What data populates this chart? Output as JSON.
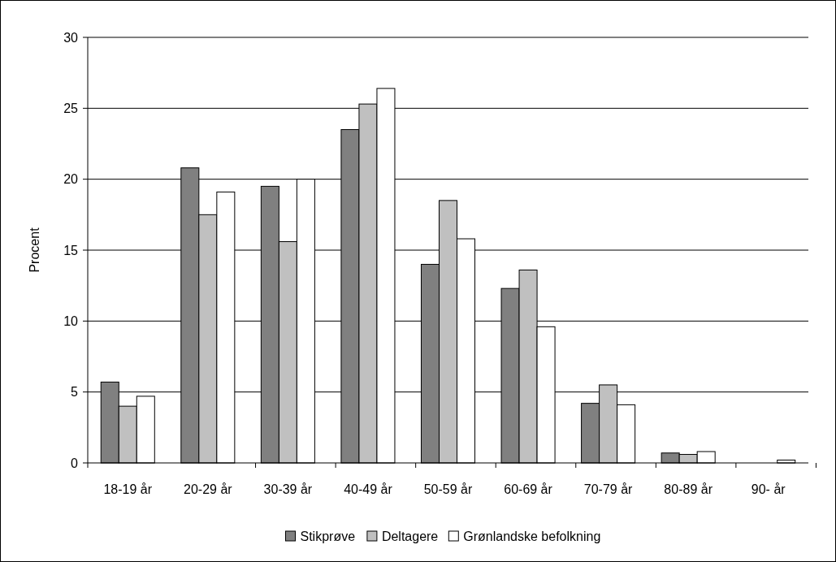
{
  "chart_data": {
    "type": "bar",
    "ylabel": "Procent",
    "categories": [
      "18-19 år",
      "20-29 år",
      "30-39 år",
      "40-49 år",
      "50-59 år",
      "60-69 år",
      "70-79 år",
      "80-89 år",
      "90- år"
    ],
    "series": [
      {
        "name": "Stikprøve",
        "color": "#808080",
        "values": [
          5.7,
          20.8,
          19.5,
          23.5,
          14.0,
          12.3,
          4.2,
          0.7,
          null
        ]
      },
      {
        "name": "Deltagere",
        "color": "#c0c0c0",
        "values": [
          4.0,
          17.5,
          15.6,
          25.3,
          18.5,
          13.6,
          5.5,
          0.6,
          null
        ]
      },
      {
        "name": "Grønlandske befolkning",
        "color": "#ffffff",
        "values": [
          4.7,
          19.1,
          20.0,
          26.4,
          15.8,
          9.6,
          4.1,
          0.8,
          0.2
        ]
      }
    ],
    "ylim": [
      0,
      30
    ],
    "yticks": [
      0,
      5,
      10,
      15,
      20,
      25,
      30
    ],
    "grid": "y",
    "legend": "bottom"
  }
}
